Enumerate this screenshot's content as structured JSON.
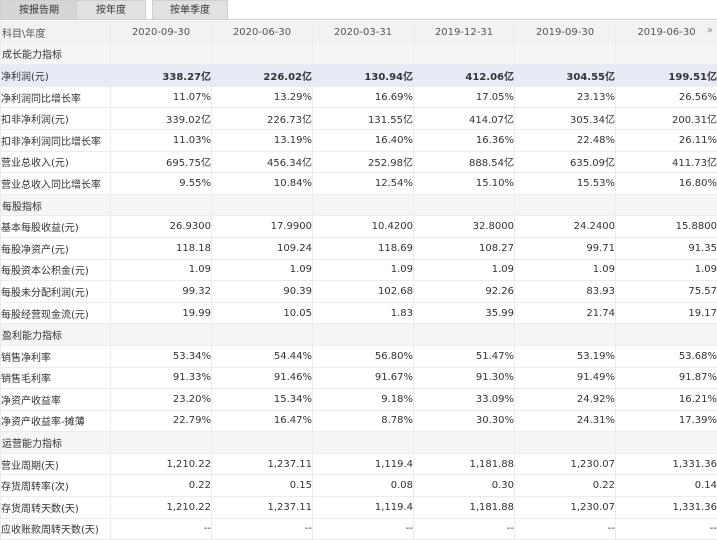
{
  "tabs": [
    {
      "label": "按报告期",
      "active": true
    },
    {
      "label": "按年度",
      "active": false
    },
    {
      "label": "按单季度",
      "active": false
    }
  ],
  "header": {
    "label": "科目\\年度",
    "periods": [
      "2020-09-30",
      "2020-06-30",
      "2020-03-31",
      "2019-12-31",
      "2019-09-30",
      "2019-06-30"
    ],
    "more_icon": "»"
  },
  "sections": [
    {
      "title": "成长能力指标",
      "rows": [
        {
          "label": "净利润(元)",
          "highlight": true,
          "values": [
            "338.27亿",
            "226.02亿",
            "130.94亿",
            "412.06亿",
            "304.55亿",
            "199.51亿"
          ]
        },
        {
          "label": "净利润同比增长率",
          "values": [
            "11.07%",
            "13.29%",
            "16.69%",
            "17.05%",
            "23.13%",
            "26.56%"
          ]
        },
        {
          "label": "扣非净利润(元)",
          "values": [
            "339.02亿",
            "226.73亿",
            "131.55亿",
            "414.07亿",
            "305.34亿",
            "200.31亿"
          ]
        },
        {
          "label": "扣非净利润同比增长率",
          "values": [
            "11.03%",
            "13.19%",
            "16.40%",
            "16.36%",
            "22.48%",
            "26.11%"
          ]
        },
        {
          "label": "营业总收入(元)",
          "values": [
            "695.75亿",
            "456.34亿",
            "252.98亿",
            "888.54亿",
            "635.09亿",
            "411.73亿"
          ]
        },
        {
          "label": "营业总收入同比增长率",
          "values": [
            "9.55%",
            "10.84%",
            "12.54%",
            "15.10%",
            "15.53%",
            "16.80%"
          ]
        }
      ]
    },
    {
      "title": "每股指标",
      "rows": [
        {
          "label": "基本每股收益(元)",
          "values": [
            "26.9300",
            "17.9900",
            "10.4200",
            "32.8000",
            "24.2400",
            "15.8800"
          ]
        },
        {
          "label": "每股净资产(元)",
          "values": [
            "118.18",
            "109.24",
            "118.69",
            "108.27",
            "99.71",
            "91.35"
          ]
        },
        {
          "label": "每股资本公积金(元)",
          "values": [
            "1.09",
            "1.09",
            "1.09",
            "1.09",
            "1.09",
            "1.09"
          ]
        },
        {
          "label": "每股未分配利润(元)",
          "values": [
            "99.32",
            "90.39",
            "102.68",
            "92.26",
            "83.93",
            "75.57"
          ]
        },
        {
          "label": "每股经营现金流(元)",
          "values": [
            "19.99",
            "10.05",
            "1.83",
            "35.99",
            "21.74",
            "19.17"
          ]
        }
      ]
    },
    {
      "title": "盈利能力指标",
      "rows": [
        {
          "label": "销售净利率",
          "values": [
            "53.34%",
            "54.44%",
            "56.80%",
            "51.47%",
            "53.19%",
            "53.68%"
          ]
        },
        {
          "label": "销售毛利率",
          "values": [
            "91.33%",
            "91.46%",
            "91.67%",
            "91.30%",
            "91.49%",
            "91.87%"
          ]
        },
        {
          "label": "净资产收益率",
          "values": [
            "23.20%",
            "15.34%",
            "9.18%",
            "33.09%",
            "24.92%",
            "16.21%"
          ]
        },
        {
          "label": "净资产收益率-摊薄",
          "values": [
            "22.79%",
            "16.47%",
            "8.78%",
            "30.30%",
            "24.31%",
            "17.39%"
          ]
        }
      ]
    },
    {
      "title": "运营能力指标",
      "rows": [
        {
          "label": "营业周期(天)",
          "values": [
            "1,210.22",
            "1,237.11",
            "1,119.4",
            "1,181.88",
            "1,230.07",
            "1,331.36"
          ]
        },
        {
          "label": "存货周转率(次)",
          "values": [
            "0.22",
            "0.15",
            "0.08",
            "0.30",
            "0.22",
            "0.14"
          ]
        },
        {
          "label": "存货周转天数(天)",
          "values": [
            "1,210.22",
            "1,237.11",
            "1,119.4",
            "1,181.88",
            "1,230.07",
            "1,331.36"
          ]
        },
        {
          "label": "应收账款周转天数(天)",
          "values": [
            "--",
            "--",
            "--",
            "--",
            "--",
            "--"
          ]
        }
      ]
    }
  ]
}
